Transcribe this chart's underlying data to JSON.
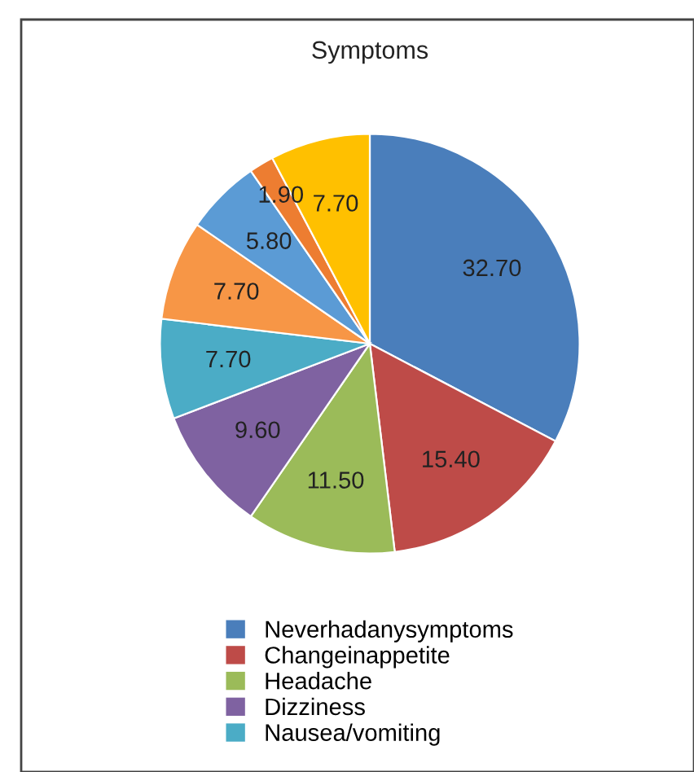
{
  "chart_data": {
    "type": "pie",
    "title": "Symptoms",
    "categories": [
      "Neverhadanysymptoms",
      "Changeinappetite",
      "Headache",
      "Dizziness",
      "Nausea/vomiting",
      null,
      null,
      null,
      null
    ],
    "values": [
      32.7,
      15.4,
      11.5,
      9.6,
      7.7,
      7.7,
      5.8,
      1.9,
      7.7
    ],
    "value_labels": [
      "32.70",
      "15.40",
      "11.50",
      "9.60",
      "7.70",
      "7.70",
      "5.80",
      "1.90",
      "7.70"
    ],
    "colors": [
      "#4a7ebb",
      "#be4b48",
      "#9bbb59",
      "#7f62a1",
      "#4bacc6",
      "#f79646",
      "#5b9bd5",
      "#ed7d31",
      "#ffc000"
    ],
    "legend": "bottom"
  }
}
